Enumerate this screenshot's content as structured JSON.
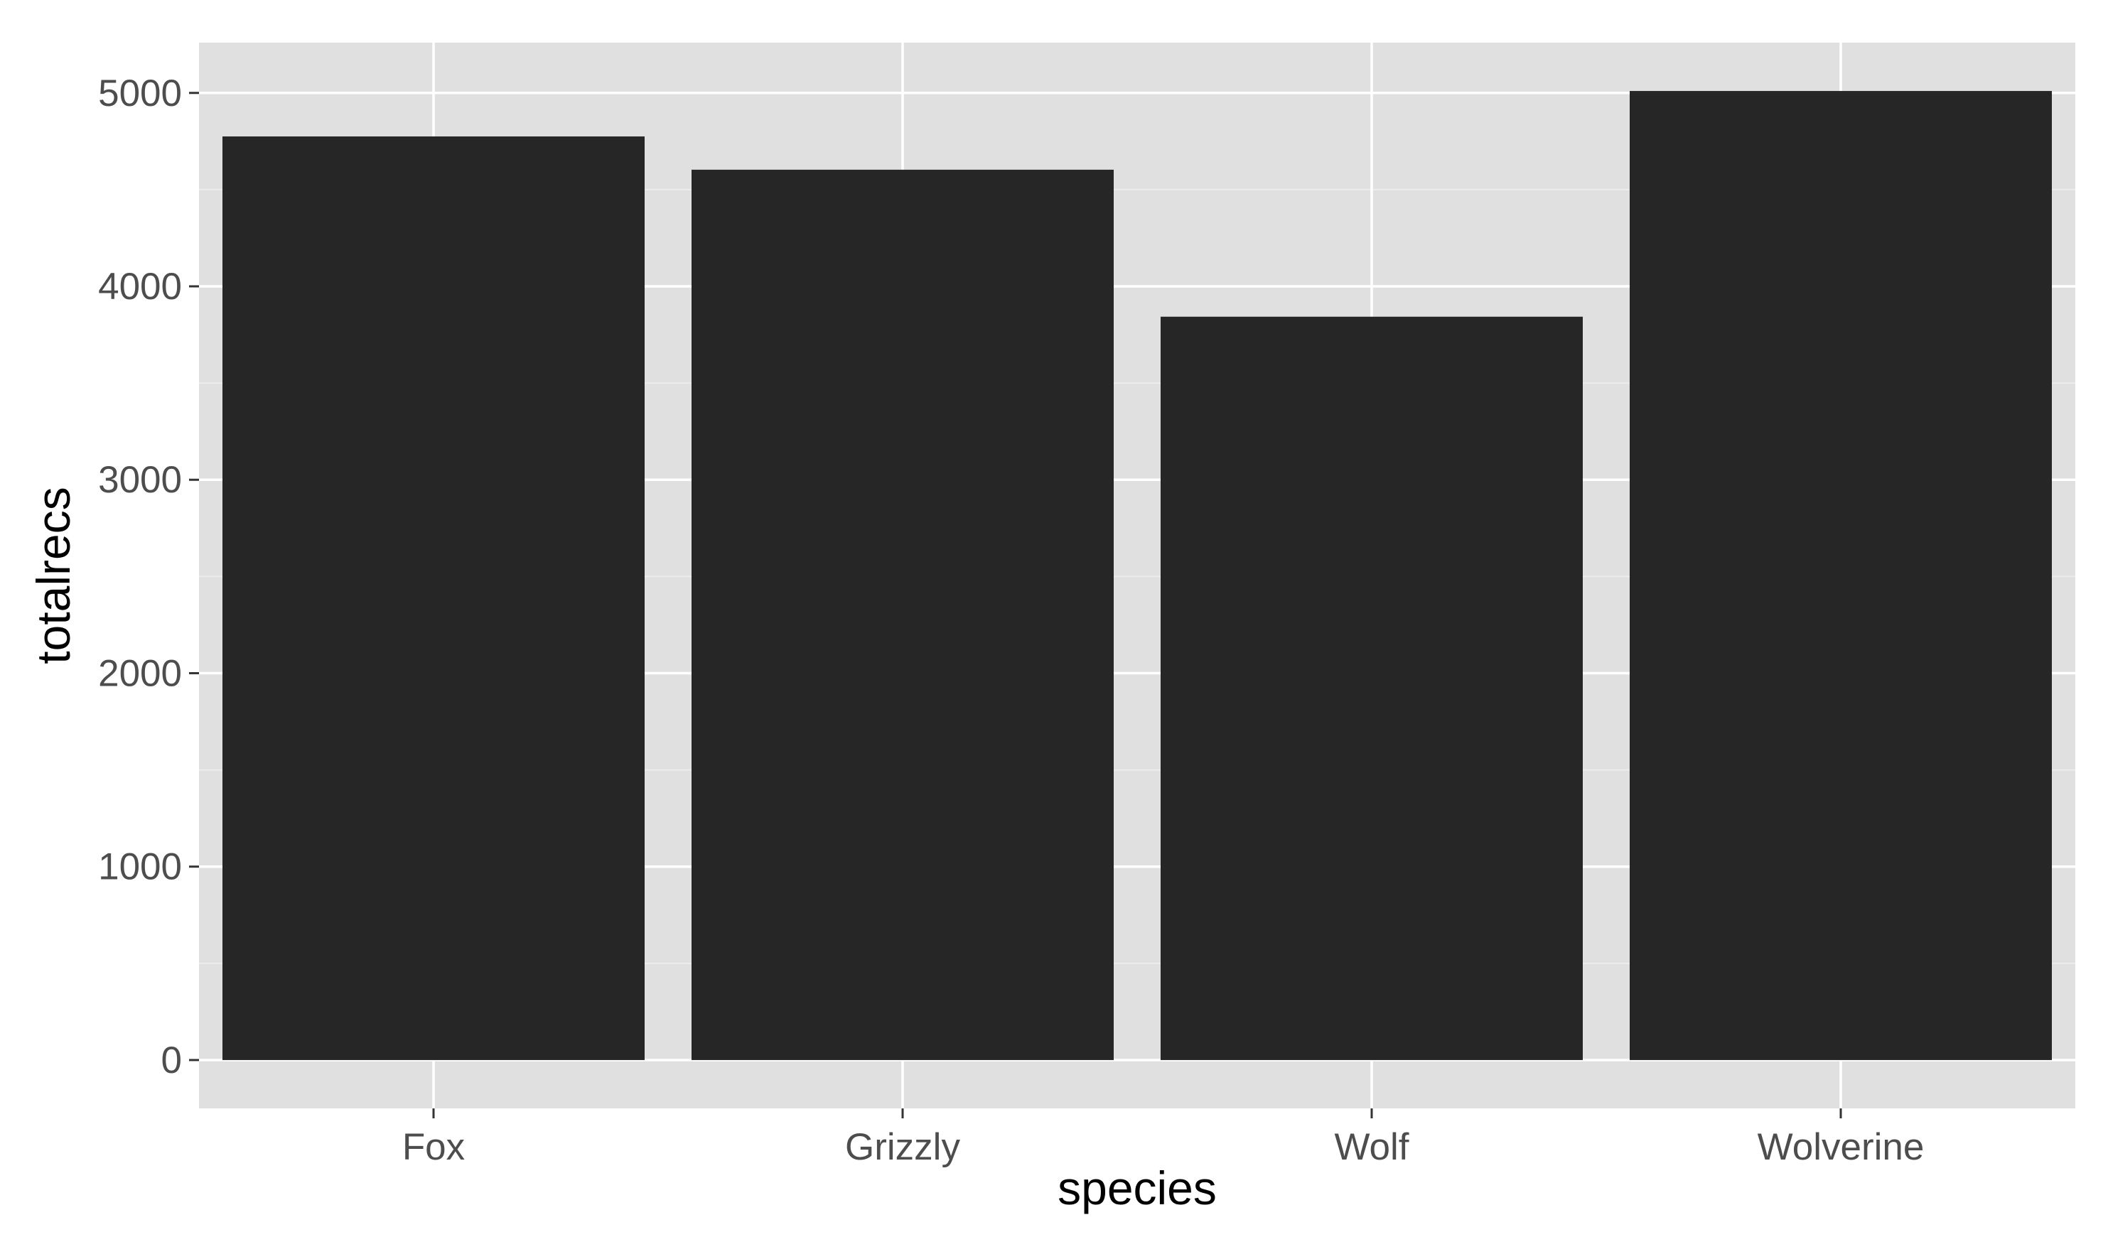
{
  "chart_data": {
    "type": "bar",
    "title": "",
    "xlabel": "species",
    "ylabel": "totalrecs",
    "categories": [
      "Fox",
      "Grizzly",
      "Wolf",
      "Wolverine"
    ],
    "values": [
      4775,
      4603,
      3843,
      5010
    ],
    "ylim": [
      -250,
      5260
    ],
    "yticks": [
      0,
      1000,
      2000,
      3000,
      4000,
      5000
    ],
    "ytick_labels": [
      "0",
      "1000",
      "2000",
      "3000",
      "4000",
      "5000"
    ],
    "grid": true,
    "legend": "none",
    "colors": {
      "bar": "#262626",
      "panel_background": "#e0e0e0",
      "grid_major": "#ffffff",
      "grid_minor": "#ececec",
      "tick_label": "#4d4d4d",
      "axis_title": "#000000"
    }
  }
}
